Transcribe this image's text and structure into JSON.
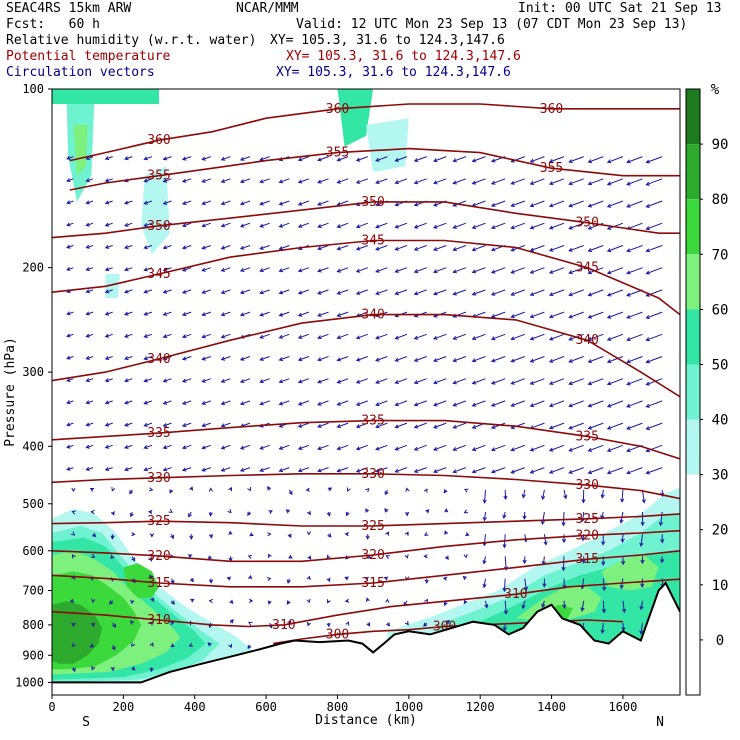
{
  "header": {
    "model": "SEAC4RS 15km ARW",
    "center": "NCAR/MMM",
    "init": "Init: 00 UTC Sat 21 Sep 13",
    "fcst": "Fcst:   60 h",
    "valid": "Valid: 12 UTC Mon 23 Sep 13 (07 CDT Mon 23 Sep 13)",
    "field1_name": "Relative humidity (w.r.t. water)",
    "field1_xy": "XY= 105.3, 31.6 to 124.3,147.6",
    "field2_name": "Potential temperature",
    "field2_xy": "XY= 105.3, 31.6 to 124.3,147.6",
    "field3_name": "Circulation vectors",
    "field3_xy": "XY= 105.3, 31.6 to 124.3,147.6",
    "colors": {
      "field1": "#000000",
      "field2": "#a00000",
      "field3": "#00008b"
    }
  },
  "chart_data": {
    "type": "heatmap",
    "subtype": "vertical cross-section: RH shading + potential temperature contours + circulation vectors",
    "xlabel": "Distance (km)",
    "ylabel": "Pressure (hPa)",
    "xlim": [
      0,
      1760
    ],
    "ylim": [
      1050,
      100
    ],
    "y_scale": "log",
    "x_ticks": [
      0,
      200,
      400,
      600,
      800,
      1000,
      1200,
      1400,
      1600
    ],
    "y_ticks": [
      100,
      200,
      300,
      400,
      500,
      600,
      700,
      800,
      900,
      1000
    ],
    "x_end_labels": {
      "left": "S",
      "right": "N"
    },
    "colorbar": {
      "unit": "%",
      "ticks": [
        90,
        80,
        70,
        60,
        50,
        40,
        30,
        20,
        10,
        0
      ],
      "bins": [
        {
          "range": [
            90,
            100
          ],
          "color": "#1e7a1e"
        },
        {
          "range": [
            80,
            90
          ],
          "color": "#2eab2e"
        },
        {
          "range": [
            70,
            80
          ],
          "color": "#3cd93c"
        },
        {
          "range": [
            60,
            70
          ],
          "color": "#7df07d"
        },
        {
          "range": [
            50,
            60
          ],
          "color": "#33e6a6"
        },
        {
          "range": [
            40,
            50
          ],
          "color": "#6ff2d0"
        },
        {
          "range": [
            30,
            40
          ],
          "color": "#b3f7f0"
        }
      ]
    },
    "theta_contours": [
      {
        "label": "360",
        "points": [
          [
            50,
            132
          ],
          [
            150,
            128
          ],
          [
            300,
            122
          ],
          [
            450,
            118
          ],
          [
            600,
            112
          ],
          [
            800,
            108
          ],
          [
            1000,
            106
          ],
          [
            1200,
            106
          ],
          [
            1400,
            108
          ],
          [
            1600,
            108
          ],
          [
            1760,
            108
          ]
        ]
      },
      {
        "label": "355",
        "points": [
          [
            50,
            148
          ],
          [
            150,
            144
          ],
          [
            300,
            140
          ],
          [
            450,
            136
          ],
          [
            600,
            132
          ],
          [
            800,
            128
          ],
          [
            1000,
            126
          ],
          [
            1200,
            128
          ],
          [
            1400,
            136
          ],
          [
            1600,
            140
          ],
          [
            1760,
            140
          ]
        ]
      },
      {
        "label": "350",
        "points": [
          [
            0,
            178
          ],
          [
            150,
            175
          ],
          [
            300,
            170
          ],
          [
            500,
            165
          ],
          [
            700,
            160
          ],
          [
            900,
            155
          ],
          [
            1100,
            155
          ],
          [
            1300,
            162
          ],
          [
            1500,
            168
          ],
          [
            1700,
            175
          ],
          [
            1760,
            175
          ]
        ]
      },
      {
        "label": "345",
        "points": [
          [
            0,
            220
          ],
          [
            150,
            215
          ],
          [
            300,
            205
          ],
          [
            500,
            192
          ],
          [
            700,
            185
          ],
          [
            900,
            180
          ],
          [
            1100,
            180
          ],
          [
            1300,
            185
          ],
          [
            1500,
            200
          ],
          [
            1700,
            225
          ],
          [
            1760,
            240
          ]
        ]
      },
      {
        "label": "340",
        "points": [
          [
            0,
            310
          ],
          [
            150,
            300
          ],
          [
            300,
            285
          ],
          [
            500,
            265
          ],
          [
            700,
            248
          ],
          [
            900,
            240
          ],
          [
            1100,
            240
          ],
          [
            1300,
            245
          ],
          [
            1500,
            265
          ],
          [
            1650,
            300
          ],
          [
            1760,
            330
          ]
        ]
      },
      {
        "label": "335",
        "points": [
          [
            0,
            390
          ],
          [
            150,
            385
          ],
          [
            300,
            380
          ],
          [
            500,
            372
          ],
          [
            700,
            365
          ],
          [
            900,
            362
          ],
          [
            1100,
            362
          ],
          [
            1300,
            370
          ],
          [
            1500,
            385
          ],
          [
            1650,
            400
          ],
          [
            1760,
            420
          ]
        ]
      },
      {
        "label": "330",
        "points": [
          [
            0,
            460
          ],
          [
            150,
            455
          ],
          [
            300,
            452
          ],
          [
            500,
            448
          ],
          [
            700,
            445
          ],
          [
            900,
            445
          ],
          [
            1100,
            448
          ],
          [
            1300,
            455
          ],
          [
            1500,
            465
          ],
          [
            1650,
            475
          ],
          [
            1760,
            490
          ]
        ]
      },
      {
        "label": "325",
        "points": [
          [
            0,
            540
          ],
          [
            150,
            538
          ],
          [
            300,
            535
          ],
          [
            500,
            538
          ],
          [
            700,
            545
          ],
          [
            900,
            545
          ],
          [
            1100,
            540
          ],
          [
            1300,
            535
          ],
          [
            1500,
            530
          ],
          [
            1650,
            525
          ],
          [
            1760,
            520
          ]
        ]
      },
      {
        "label": "320",
        "points": [
          [
            0,
            600
          ],
          [
            150,
            605
          ],
          [
            300,
            612
          ],
          [
            500,
            625
          ],
          [
            700,
            625
          ],
          [
            900,
            610
          ],
          [
            1100,
            590
          ],
          [
            1300,
            575
          ],
          [
            1500,
            565
          ],
          [
            1650,
            560
          ],
          [
            1760,
            555
          ]
        ]
      },
      {
        "label": "315",
        "points": [
          [
            0,
            660
          ],
          [
            150,
            668
          ],
          [
            300,
            680
          ],
          [
            500,
            690
          ],
          [
            700,
            690
          ],
          [
            900,
            680
          ],
          [
            1100,
            660
          ],
          [
            1300,
            640
          ],
          [
            1500,
            620
          ],
          [
            1650,
            610
          ],
          [
            1760,
            600
          ]
        ]
      },
      {
        "label": "310",
        "points": [
          [
            0,
            760
          ],
          [
            150,
            770
          ],
          [
            300,
            785
          ],
          [
            450,
            800
          ],
          [
            550,
            805
          ],
          [
            650,
            800
          ],
          [
            800,
            770
          ],
          [
            950,
            745
          ],
          [
            1100,
            730
          ],
          [
            1300,
            710
          ],
          [
            1450,
            690
          ],
          [
            1600,
            680
          ],
          [
            1760,
            670
          ]
        ]
      },
      {
        "label": "300",
        "points": [
          [
            620,
            860
          ],
          [
            700,
            845
          ],
          [
            800,
            830
          ],
          [
            900,
            820
          ],
          [
            1000,
            815
          ],
          [
            1100,
            805
          ],
          [
            1200,
            800
          ],
          [
            1300,
            795
          ],
          [
            1400,
            790
          ],
          [
            1500,
            785
          ],
          [
            1600,
            790
          ]
        ]
      }
    ],
    "terrain_pressure": [
      [
        0,
        1000
      ],
      [
        250,
        1000
      ],
      [
        330,
        960
      ],
      [
        420,
        930
      ],
      [
        500,
        905
      ],
      [
        580,
        880
      ],
      [
        640,
        860
      ],
      [
        680,
        850
      ],
      [
        750,
        855
      ],
      [
        830,
        850
      ],
      [
        870,
        860
      ],
      [
        900,
        890
      ],
      [
        930,
        860
      ],
      [
        960,
        830
      ],
      [
        1000,
        820
      ],
      [
        1060,
        830
      ],
      [
        1120,
        810
      ],
      [
        1180,
        790
      ],
      [
        1240,
        800
      ],
      [
        1280,
        830
      ],
      [
        1320,
        810
      ],
      [
        1360,
        760
      ],
      [
        1400,
        740
      ],
      [
        1430,
        780
      ],
      [
        1480,
        800
      ],
      [
        1520,
        850
      ],
      [
        1560,
        860
      ],
      [
        1600,
        820
      ],
      [
        1650,
        850
      ],
      [
        1700,
        700
      ],
      [
        1720,
        680
      ],
      [
        1760,
        760
      ]
    ],
    "contour_label_bottom_left": "31.0"
  }
}
